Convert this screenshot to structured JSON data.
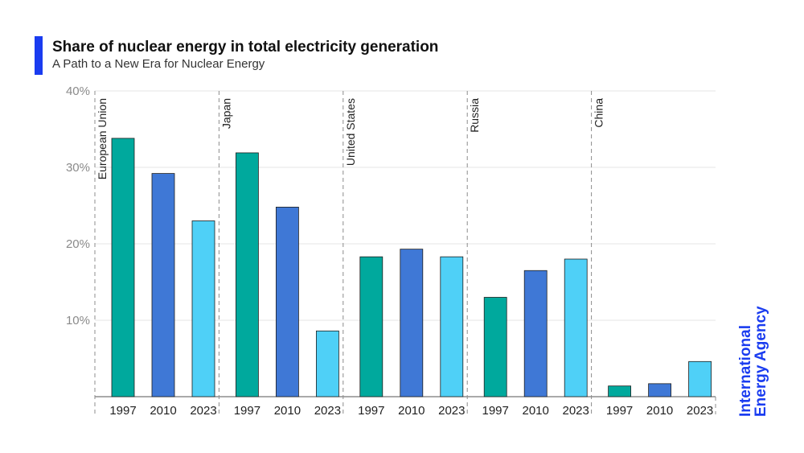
{
  "header": {
    "title": "Share of nuclear energy in total electricity generation",
    "subtitle": "A Path to a New Era for Nuclear Energy"
  },
  "brand": {
    "line1": "International",
    "line2": "Energy Agency"
  },
  "colors": {
    "accent": "#1a3cf0",
    "1997": "#00a99d",
    "2010": "#3f78d6",
    "2023": "#4fd0f7",
    "grid": "#e6e6e6",
    "separator": "#8c8c8c"
  },
  "chart_data": {
    "type": "bar",
    "title": "Share of nuclear energy in total electricity generation",
    "subtitle": "A Path to a New Era for Nuclear Energy",
    "xlabel": "",
    "ylabel": "",
    "ylim": [
      0,
      40
    ],
    "yticks": [
      10,
      20,
      30,
      40
    ],
    "ytick_labels": [
      "10%",
      "20%",
      "30%",
      "40%"
    ],
    "grid": true,
    "legend": "none",
    "years": [
      "1997",
      "2010",
      "2023"
    ],
    "groups": [
      {
        "name": "European Union",
        "values": [
          33.8,
          29.2,
          23.0
        ]
      },
      {
        "name": "Japan",
        "values": [
          31.9,
          24.8,
          8.6
        ]
      },
      {
        "name": "United States",
        "values": [
          18.3,
          19.3,
          18.3
        ]
      },
      {
        "name": "Russia",
        "values": [
          13.0,
          16.5,
          18.0
        ]
      },
      {
        "name": "China",
        "values": [
          1.4,
          1.7,
          4.6
        ]
      }
    ]
  }
}
